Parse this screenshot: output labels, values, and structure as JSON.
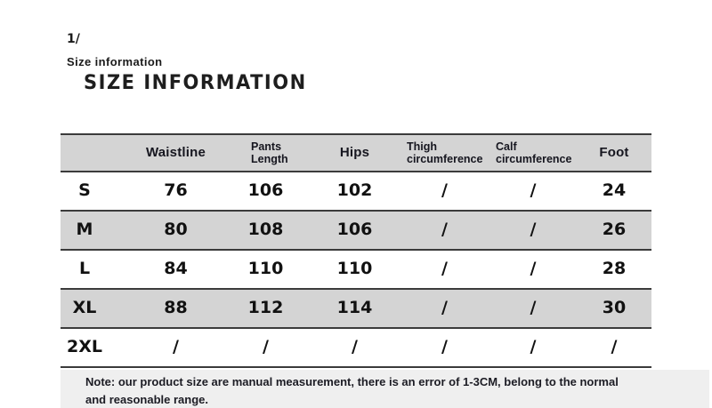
{
  "page": {
    "pagination": "1/",
    "subtitle": "Size information",
    "title": "SIZE INFORMATION"
  },
  "table": {
    "columns": [
      {
        "label": ""
      },
      {
        "label": "Waistline"
      },
      {
        "label": "Pants Length"
      },
      {
        "label": "Hips"
      },
      {
        "label": "Thigh circumference"
      },
      {
        "label": "Calf circumference"
      },
      {
        "label": "Foot"
      }
    ],
    "rows": [
      {
        "size": "S",
        "values": [
          "76",
          "106",
          "102",
          "/",
          "/",
          "24"
        ]
      },
      {
        "size": "M",
        "values": [
          "80",
          "108",
          "106",
          "/",
          "/",
          "26"
        ]
      },
      {
        "size": "L",
        "values": [
          "84",
          "110",
          "110",
          "/",
          "/",
          "28"
        ]
      },
      {
        "size": "XL",
        "values": [
          "88",
          "112",
          "114",
          "/",
          "/",
          "30"
        ]
      },
      {
        "size": "2XL",
        "values": [
          "/",
          "/",
          "/",
          "/",
          "/",
          "/"
        ]
      }
    ]
  },
  "note": "Note: our product size are manual measurement, there is an error of 1-3CM, belong to the normal and reasonable range.",
  "colors": {
    "header_bg": "#d4d4d4",
    "stripe_bg": "#d4d4d4",
    "note_bg": "#efefef",
    "border": "#3b3b3b",
    "text": "#131313"
  }
}
